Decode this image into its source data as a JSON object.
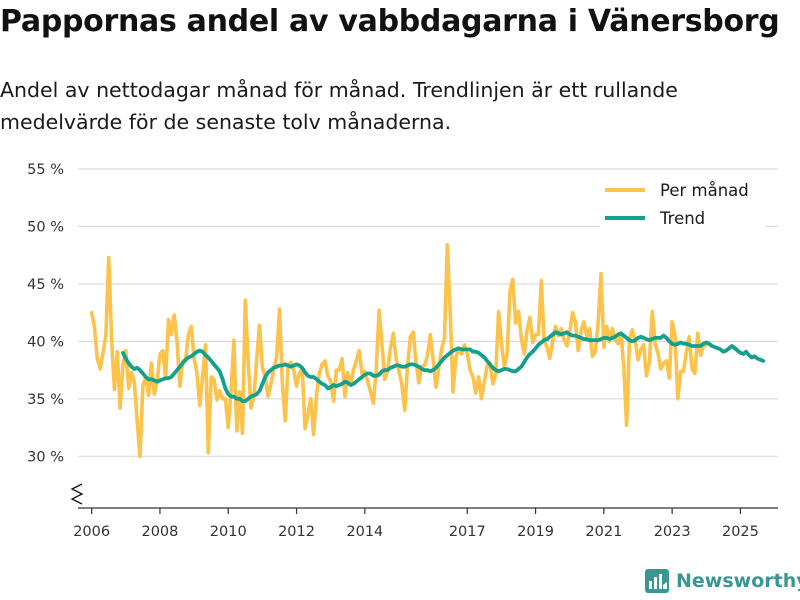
{
  "title": "Pappornas andel av vabbdagarna i Vänersborg",
  "subtitle": "Andel av nettodagar månad för månad. Trendlinjen är ett rullande medelvärde för de senaste tolv månaderna.",
  "brand": "Newsworthy",
  "colors": {
    "monthly": "#fcc24c",
    "trend": "#14a08c",
    "grid": "#d9d9d9",
    "axis": "#333333"
  },
  "chart_data": {
    "type": "line",
    "title": "Pappornas andel av vabbdagarna i Vänersborg",
    "ylabel": "",
    "xlabel": "",
    "ylim": [
      25.5,
      55
    ],
    "xlim": [
      2005.6,
      2026.1
    ],
    "yticks": [
      30,
      35,
      40,
      45,
      50,
      55
    ],
    "ytick_labels": [
      "30 %",
      "35 %",
      "40 %",
      "45 %",
      "50 %",
      "55 %"
    ],
    "xticks": [
      2006,
      2008,
      2010,
      2012,
      2014,
      2017,
      2019,
      2021,
      2023,
      2025
    ],
    "xtick_labels": [
      "2006",
      "2008",
      "2010",
      "2012",
      "2014",
      "2017",
      "2019",
      "2021",
      "2023",
      "2025"
    ],
    "axis_break": true,
    "legend_position": "top-right",
    "series": [
      {
        "name": "Per månad",
        "start": 2006.0,
        "step_months": 1,
        "values": [
          42.5,
          41.2,
          38.5,
          37.6,
          39.0,
          40.5,
          47.3,
          40.2,
          35.8,
          39.1,
          34.2,
          38.0,
          39.2,
          35.9,
          37.3,
          36.5,
          33.0,
          30.0,
          36.2,
          36.8,
          35.3,
          38.1,
          35.4,
          36.5,
          38.9,
          39.2,
          36.8,
          41.9,
          40.6,
          42.3,
          40.0,
          36.1,
          38.3,
          38.4,
          40.6,
          41.3,
          38.5,
          37.3,
          34.4,
          36.9,
          39.7,
          30.3,
          36.9,
          36.7,
          34.9,
          35.7,
          35.0,
          35.0,
          32.5,
          35.8,
          40.1,
          32.2,
          35.6,
          32.0,
          43.6,
          38.2,
          34.2,
          35.2,
          38.5,
          41.4,
          37.7,
          36.9,
          35.2,
          36.3,
          37.6,
          38.6,
          42.8,
          36.4,
          33.1,
          37.8,
          38.2,
          37.5,
          36.1,
          37.2,
          37.6,
          32.4,
          33.6,
          35.0,
          31.9,
          35.3,
          37.2,
          38.0,
          38.3,
          37.0,
          36.5,
          34.8,
          37.5,
          37.5,
          38.5,
          35.2,
          37.3,
          36.2,
          37.5,
          38.3,
          39.2,
          37.2,
          37.4,
          36.5,
          35.6,
          34.6,
          37.5,
          42.7,
          39.8,
          36.7,
          37.4,
          39.4,
          40.7,
          38.5,
          37.4,
          36.3,
          34.0,
          37.8,
          40.4,
          40.8,
          38.2,
          36.4,
          37.8,
          37.9,
          38.7,
          40.6,
          38.4,
          36.0,
          37.7,
          39.4,
          40.3,
          48.4,
          42.6,
          35.6,
          38.6,
          39.4,
          38.9,
          39.7,
          38.9,
          37.5,
          36.9,
          35.5,
          36.9,
          35.0,
          36.4,
          37.9,
          38.1,
          36.3,
          37.1,
          42.6,
          39.9,
          37.8,
          38.9,
          44.4,
          45.4,
          41.6,
          42.6,
          40.3,
          38.9,
          40.9,
          42.1,
          39.9,
          40.6,
          40.6,
          45.3,
          40.1,
          39.5,
          38.5,
          40.0,
          41.3,
          40.5,
          41.1,
          40.2,
          39.6,
          40.8,
          42.5,
          41.7,
          39.2,
          40.9,
          41.7,
          40.5,
          41.1,
          38.7,
          39.1,
          41.7,
          45.9,
          39.5,
          41.3,
          40.0,
          41.1,
          40.1,
          39.8,
          40.7,
          37.8,
          32.7,
          40.2,
          41.0,
          40.1,
          38.4,
          39.3,
          39.7,
          37.0,
          38.2,
          42.6,
          39.8,
          39.0,
          37.6,
          38.1,
          38.3,
          36.8,
          41.7,
          40.6,
          35.0,
          37.4,
          37.4,
          39.1,
          40.4,
          37.6,
          37.2,
          40.7,
          38.8,
          39.6,
          39.7
        ]
      },
      {
        "name": "Trend",
        "start": 2006.917,
        "step_months": 1,
        "values": [
          39.0,
          38.5,
          38.1,
          37.8,
          37.6,
          37.7,
          37.5,
          37.2,
          36.9,
          36.7,
          36.7,
          36.6,
          36.5,
          36.6,
          36.7,
          36.8,
          36.8,
          36.9,
          37.2,
          37.5,
          37.8,
          38.1,
          38.4,
          38.6,
          38.7,
          38.9,
          39.1,
          39.2,
          39.1,
          38.8,
          38.6,
          38.3,
          38.0,
          37.7,
          37.4,
          36.7,
          35.9,
          35.4,
          35.2,
          35.2,
          35.0,
          35.0,
          34.8,
          34.8,
          35.0,
          35.2,
          35.3,
          35.4,
          35.7,
          36.3,
          36.9,
          37.3,
          37.5,
          37.7,
          37.8,
          37.9,
          37.9,
          38.0,
          37.9,
          37.8,
          37.9,
          38.0,
          37.9,
          37.7,
          37.3,
          37.0,
          36.9,
          36.9,
          36.7,
          36.5,
          36.3,
          36.2,
          35.9,
          36.0,
          36.2,
          36.1,
          36.2,
          36.3,
          36.5,
          36.4,
          36.2,
          36.3,
          36.5,
          36.7,
          36.9,
          37.1,
          37.2,
          37.2,
          37.0,
          37.0,
          37.1,
          37.4,
          37.5,
          37.5,
          37.7,
          37.8,
          37.9,
          37.9,
          37.8,
          37.8,
          37.9,
          38.0,
          38.0,
          37.9,
          37.8,
          37.6,
          37.5,
          37.5,
          37.4,
          37.5,
          37.7,
          38.0,
          38.3,
          38.6,
          38.8,
          39.0,
          39.2,
          39.3,
          39.4,
          39.3,
          39.3,
          39.3,
          39.3,
          39.1,
          39.1,
          39.0,
          38.8,
          38.6,
          38.3,
          38.0,
          37.7,
          37.5,
          37.4,
          37.5,
          37.6,
          37.6,
          37.5,
          37.4,
          37.4,
          37.6,
          37.8,
          38.2,
          38.6,
          38.9,
          39.1,
          39.4,
          39.7,
          39.9,
          40.1,
          40.2,
          40.4,
          40.6,
          40.8,
          40.7,
          40.6,
          40.7,
          40.8,
          40.6,
          40.5,
          40.5,
          40.4,
          40.3,
          40.2,
          40.2,
          40.1,
          40.1,
          40.1,
          40.1,
          40.2,
          40.3,
          40.3,
          40.2,
          40.3,
          40.4,
          40.6,
          40.7,
          40.5,
          40.3,
          40.1,
          40.0,
          40.1,
          40.3,
          40.4,
          40.3,
          40.2,
          40.1,
          40.2,
          40.3,
          40.3,
          40.3,
          40.5,
          40.3,
          40.0,
          39.8,
          39.7,
          39.8,
          39.9,
          39.8,
          39.8,
          39.7,
          39.6,
          39.6,
          39.6,
          39.6,
          39.8,
          39.9,
          39.8,
          39.6,
          39.5,
          39.4,
          39.3,
          39.1,
          39.2,
          39.4,
          39.6,
          39.4,
          39.2,
          39.0,
          38.9,
          39.1,
          38.8,
          38.6,
          38.7,
          38.5,
          38.4,
          38.3
        ]
      }
    ]
  }
}
